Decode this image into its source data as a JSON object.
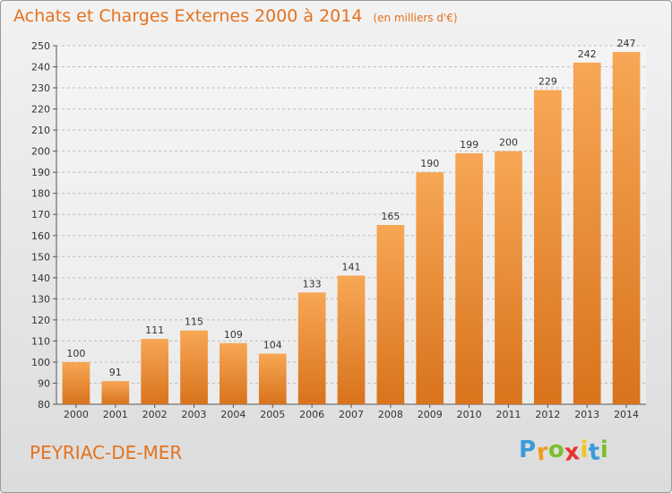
{
  "header": {
    "title": "Achats et Charges Externes 2000 à 2014",
    "subtitle": "(en milliers d'€)"
  },
  "footer": {
    "commune": "PEYRIAC-DE-MER",
    "logo_text": "Proxiti",
    "logo_letter_colors": [
      "#3a9bd8",
      "#f29a1f",
      "#7cbf2c",
      "#e8352f",
      "#f2c41c",
      "#3a9bd8",
      "#7cbf2c"
    ]
  },
  "colors": {
    "bar_light": "#f7a755",
    "bar_dark": "#d9731c",
    "title": "#e5721e",
    "grid": "#bdbdbd"
  },
  "chart_data": {
    "type": "bar",
    "title": "Achats et Charges Externes 2000 à 2014",
    "subtitle": "(en milliers d'€)",
    "categories": [
      "2000",
      "2001",
      "2002",
      "2003",
      "2004",
      "2005",
      "2006",
      "2007",
      "2008",
      "2009",
      "2010",
      "2011",
      "2012",
      "2013",
      "2014"
    ],
    "values": [
      100,
      91,
      111,
      115,
      109,
      104,
      133,
      141,
      165,
      190,
      199,
      200,
      229,
      242,
      247
    ],
    "ylim": [
      80,
      250
    ],
    "yticks": [
      80,
      90,
      100,
      110,
      120,
      130,
      140,
      150,
      160,
      170,
      180,
      190,
      200,
      210,
      220,
      230,
      240,
      250
    ],
    "grid": true,
    "data_labels": true
  }
}
